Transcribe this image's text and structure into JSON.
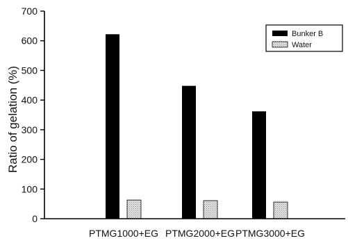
{
  "chart_data": {
    "type": "bar",
    "title": "",
    "xlabel": "",
    "ylabel": "Ratio of gelation (%)",
    "ylim": [
      0,
      700
    ],
    "yticks": [
      0,
      100,
      200,
      300,
      400,
      500,
      600,
      700
    ],
    "categories": [
      "PTMG1000+EG",
      "PTMG2000+EG",
      "PTMG3000+EG"
    ],
    "series": [
      {
        "name": "Bunker B",
        "values": [
          622,
          448,
          362
        ],
        "color": "#000000"
      },
      {
        "name": "Water",
        "values": [
          63,
          61,
          56
        ],
        "color": "#d4d4d4"
      }
    ],
    "grid": false,
    "legend_position": "top-right"
  }
}
